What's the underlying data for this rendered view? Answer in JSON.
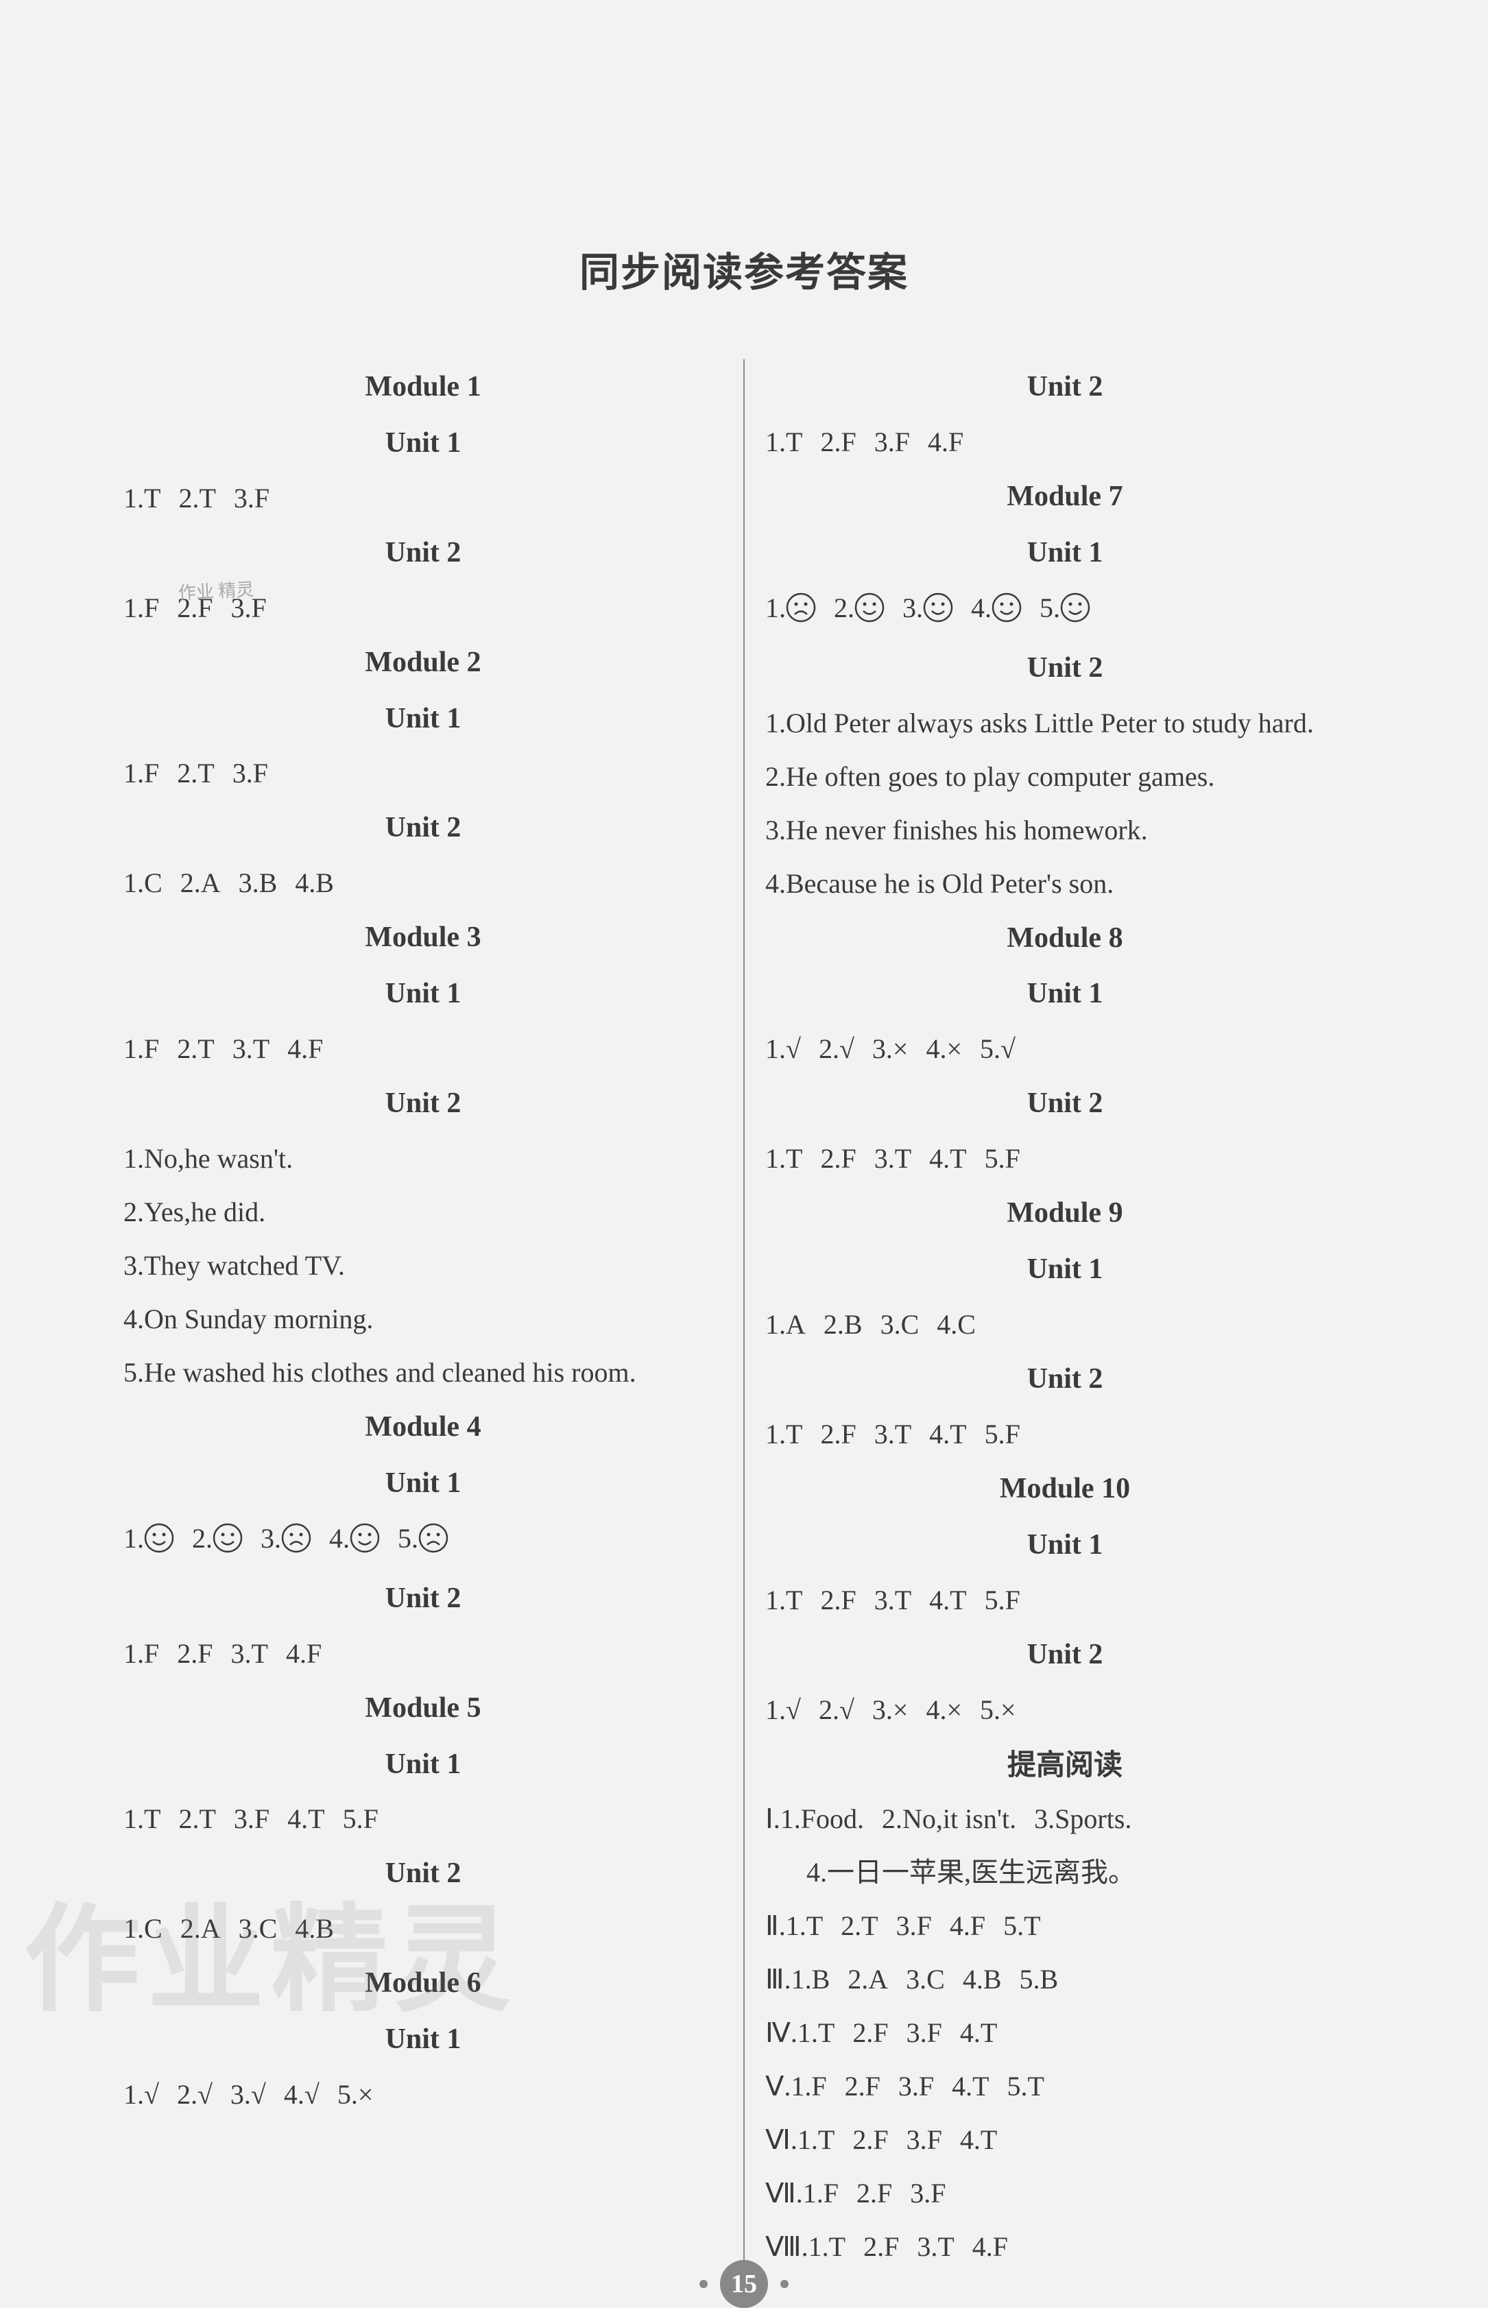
{
  "title": "同步阅读参考答案",
  "page_number": "15",
  "watermark_small": "作业\n精灵",
  "watermark_big": "作业精灵",
  "face": {
    "stroke": "#3a3a3a",
    "fill": "none",
    "r": 20
  },
  "left": [
    {
      "t": "module",
      "v": "Module 1"
    },
    {
      "t": "unit",
      "v": "Unit 1"
    },
    {
      "t": "items",
      "v": [
        "1.T",
        "2.T",
        "3.F"
      ]
    },
    {
      "t": "unit",
      "v": "Unit 2"
    },
    {
      "t": "items",
      "v": [
        "1.F",
        "2.F",
        "3.F"
      ]
    },
    {
      "t": "module",
      "v": "Module 2"
    },
    {
      "t": "unit",
      "v": "Unit 1"
    },
    {
      "t": "items",
      "v": [
        "1.F",
        "2.T",
        "3.F"
      ]
    },
    {
      "t": "unit",
      "v": "Unit 2"
    },
    {
      "t": "items",
      "v": [
        "1.C",
        "2.A",
        "3.B",
        "4.B"
      ]
    },
    {
      "t": "module",
      "v": "Module 3"
    },
    {
      "t": "unit",
      "v": "Unit 1"
    },
    {
      "t": "items",
      "v": [
        "1.F",
        "2.T",
        "3.T",
        "4.F"
      ]
    },
    {
      "t": "unit",
      "v": "Unit 2"
    },
    {
      "t": "text",
      "v": "1.No,he wasn't."
    },
    {
      "t": "text",
      "v": "2.Yes,he did."
    },
    {
      "t": "text",
      "v": "3.They watched TV."
    },
    {
      "t": "text",
      "v": "4.On Sunday morning."
    },
    {
      "t": "text",
      "v": "5.He washed his clothes and cleaned his room."
    },
    {
      "t": "module",
      "v": "Module 4"
    },
    {
      "t": "unit",
      "v": "Unit 1"
    },
    {
      "t": "faces",
      "v": [
        {
          "n": "1",
          "m": "smile"
        },
        {
          "n": "2",
          "m": "smile"
        },
        {
          "n": "3",
          "m": "sad"
        },
        {
          "n": "4",
          "m": "smile"
        },
        {
          "n": "5",
          "m": "sad"
        }
      ]
    },
    {
      "t": "unit",
      "v": "Unit 2"
    },
    {
      "t": "items",
      "v": [
        "1.F",
        "2.F",
        "3.T",
        "4.F"
      ]
    },
    {
      "t": "module",
      "v": "Module 5"
    },
    {
      "t": "unit",
      "v": "Unit 1"
    },
    {
      "t": "items",
      "v": [
        "1.T",
        "2.T",
        "3.F",
        "4.T",
        "5.F"
      ]
    },
    {
      "t": "unit",
      "v": "Unit 2"
    },
    {
      "t": "items",
      "v": [
        "1.C",
        "2.A",
        "3.C",
        "4.B"
      ]
    },
    {
      "t": "module",
      "v": "Module 6"
    },
    {
      "t": "unit",
      "v": "Unit 1"
    },
    {
      "t": "items",
      "v": [
        "1.√",
        "2.√",
        "3.√",
        "4.√",
        "5.×"
      ]
    }
  ],
  "right": [
    {
      "t": "unit",
      "v": "Unit 2"
    },
    {
      "t": "items",
      "v": [
        "1.T",
        "2.F",
        "3.F",
        "4.F"
      ]
    },
    {
      "t": "module",
      "v": "Module 7"
    },
    {
      "t": "unit",
      "v": "Unit 1"
    },
    {
      "t": "faces",
      "v": [
        {
          "n": "1",
          "m": "sad"
        },
        {
          "n": "2",
          "m": "smile"
        },
        {
          "n": "3",
          "m": "smile"
        },
        {
          "n": "4",
          "m": "smile"
        },
        {
          "n": "5",
          "m": "smile"
        }
      ]
    },
    {
      "t": "unit",
      "v": "Unit 2"
    },
    {
      "t": "text",
      "v": "1.Old Peter always asks Little Peter to study hard."
    },
    {
      "t": "text",
      "v": "2.He often goes to play computer games."
    },
    {
      "t": "text",
      "v": "3.He never finishes his homework."
    },
    {
      "t": "text",
      "v": "4.Because he is Old Peter's son."
    },
    {
      "t": "module",
      "v": "Module 8"
    },
    {
      "t": "unit",
      "v": "Unit 1"
    },
    {
      "t": "items",
      "v": [
        "1.√",
        "2.√",
        "3.×",
        "4.×",
        "5.√"
      ]
    },
    {
      "t": "unit",
      "v": "Unit 2"
    },
    {
      "t": "items",
      "v": [
        "1.T",
        "2.F",
        "3.T",
        "4.T",
        "5.F"
      ]
    },
    {
      "t": "module",
      "v": "Module 9"
    },
    {
      "t": "unit",
      "v": "Unit 1"
    },
    {
      "t": "items",
      "v": [
        "1.A",
        "2.B",
        "3.C",
        "4.C"
      ]
    },
    {
      "t": "unit",
      "v": "Unit 2"
    },
    {
      "t": "items",
      "v": [
        "1.T",
        "2.F",
        "3.T",
        "4.T",
        "5.F"
      ]
    },
    {
      "t": "module",
      "v": "Module 10"
    },
    {
      "t": "unit",
      "v": "Unit 1"
    },
    {
      "t": "items",
      "v": [
        "1.T",
        "2.F",
        "3.T",
        "4.T",
        "5.F"
      ]
    },
    {
      "t": "unit",
      "v": "Unit 2"
    },
    {
      "t": "items",
      "v": [
        "1.√",
        "2.√",
        "3.×",
        "4.×",
        "5.×"
      ]
    },
    {
      "t": "cn",
      "v": "提高阅读"
    },
    {
      "t": "items",
      "v": [
        "Ⅰ.1.Food.",
        "2.No,it isn't.",
        "3.Sports."
      ]
    },
    {
      "t": "text",
      "cls": "indent",
      "v": "4.一日一苹果,医生远离我。"
    },
    {
      "t": "items",
      "v": [
        "Ⅱ.1.T",
        "2.T",
        "3.F",
        "4.F",
        "5.T"
      ]
    },
    {
      "t": "items",
      "v": [
        "Ⅲ.1.B",
        "2.A",
        "3.C",
        "4.B",
        "5.B"
      ]
    },
    {
      "t": "items",
      "v": [
        "Ⅳ.1.T",
        "2.F",
        "3.F",
        "4.T"
      ]
    },
    {
      "t": "items",
      "v": [
        "Ⅴ.1.F",
        "2.F",
        "3.F",
        "4.T",
        "5.T"
      ]
    },
    {
      "t": "items",
      "v": [
        "Ⅵ.1.T",
        "2.F",
        "3.F",
        "4.T"
      ]
    },
    {
      "t": "items",
      "v": [
        "Ⅶ.1.F",
        "2.F",
        "3.F"
      ]
    },
    {
      "t": "items",
      "v": [
        "Ⅷ.1.T",
        "2.F",
        "3.T",
        "4.F"
      ]
    }
  ]
}
